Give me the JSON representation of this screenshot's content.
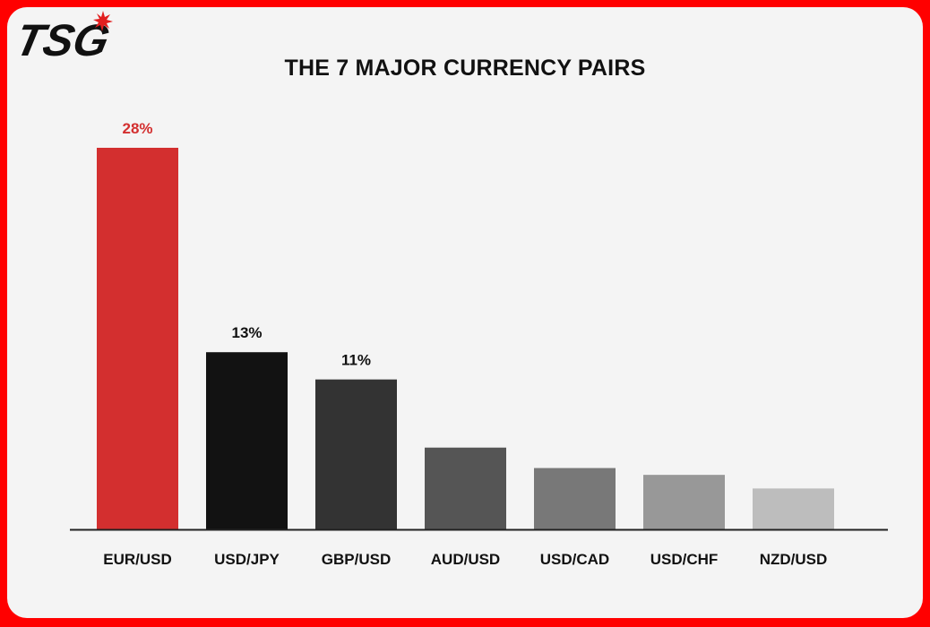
{
  "brand": {
    "logo_text": "TSG",
    "accent": "#e11f1f"
  },
  "chart_data": {
    "type": "bar",
    "title": "THE 7 MAJOR CURRENCY PAIRS",
    "xlabel": "",
    "ylabel": "",
    "categories": [
      "EUR/USD",
      "USD/JPY",
      "GBP/USD",
      "AUD/USD",
      "USD/CAD",
      "USD/CHF",
      "NZD/USD"
    ],
    "values": [
      28,
      13,
      11,
      6,
      4.5,
      4,
      3
    ],
    "value_unit": "%",
    "data_labels": [
      "28%",
      "13%",
      "11%",
      "",
      "",
      "",
      ""
    ],
    "data_label_colors": [
      "#d32f2f",
      "#111111",
      "#111111",
      "",
      "",
      "",
      ""
    ],
    "bar_colors": [
      "#d32f2f",
      "#121212",
      "#333333",
      "#555555",
      "#787878",
      "#989898",
      "#bdbdbd"
    ],
    "ylim": [
      0,
      28
    ],
    "grid": false,
    "legend": "none"
  }
}
